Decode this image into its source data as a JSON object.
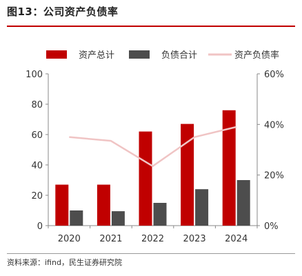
{
  "figure": {
    "title": "图13：公司资产负债率",
    "source": "资料来源：ifind，民生证券研究院"
  },
  "colors": {
    "total_assets": "#c00000",
    "total_liabilities": "#4d4d4d",
    "debt_ratio": "#f0c4c4",
    "title_rule": "#c00000"
  },
  "chart_data": {
    "type": "bar",
    "categories": [
      "2020",
      "2021",
      "2022",
      "2023",
      "2024"
    ],
    "series": [
      {
        "name": "资产总计",
        "type": "bar",
        "axis": "left",
        "values": [
          27,
          27,
          62,
          67,
          76
        ]
      },
      {
        "name": "负债合计",
        "type": "bar",
        "axis": "left",
        "values": [
          10,
          9.5,
          15,
          24,
          30
        ]
      },
      {
        "name": "资产负债率",
        "type": "line",
        "axis": "right",
        "values": [
          0.35,
          0.335,
          0.235,
          0.35,
          0.39
        ]
      }
    ],
    "y_left": {
      "min": 0,
      "max": 100,
      "ticks": [
        "0",
        "20",
        "40",
        "60",
        "80",
        "100"
      ]
    },
    "y_right": {
      "min": 0,
      "max": 0.6,
      "ticks": [
        "0%",
        "20%",
        "40%",
        "60%"
      ]
    },
    "legend_position": "top",
    "grid": false
  }
}
